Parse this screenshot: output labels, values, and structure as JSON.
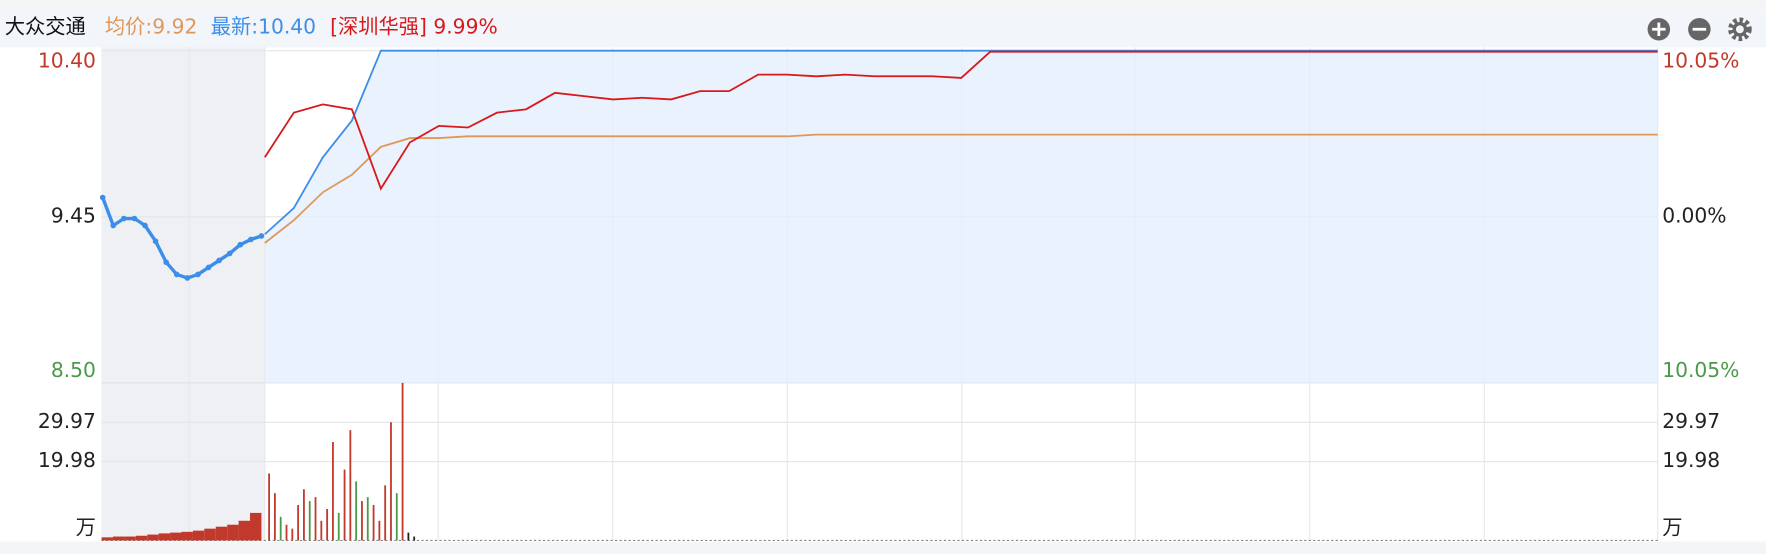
{
  "header": {
    "stock": "大众交通",
    "avg": "均价:9.92",
    "latest": "最新:10.40",
    "compare": "[深圳华强] 9.99%"
  },
  "chart_data": [
    {
      "type": "line",
      "grid": true,
      "ylim": [
        8.5,
        10.4
      ],
      "yticks": [
        {
          "value": 8.5,
          "label": "8.50"
        },
        9.45,
        {
          "value": 10.4,
          "label": "10.40"
        }
      ],
      "ytick_colors": [
        "#4a9a4a",
        "#222222",
        "#c0392b"
      ],
      "y2lim": [
        -10.05,
        10.05
      ],
      "y2ticks": [
        {
          "value": -10.05,
          "label": "10.05%"
        },
        {
          "value": 0,
          "label": "0.00%"
        },
        {
          "value": 10.05,
          "label": "10.05%"
        }
      ],
      "series": [
        {
          "color": "#3d8ee8",
          "fill": "#e3effc",
          "values": [
            9.35,
            9.5,
            9.79,
            10.0,
            10.4,
            10.4,
            10.4,
            10.4,
            10.4,
            10.4,
            10.4,
            10.4,
            10.4,
            10.4,
            10.4,
            10.4,
            10.4,
            10.4,
            10.4,
            10.4,
            10.4,
            10.4,
            10.4,
            10.4,
            10.4,
            10.4,
            10.4,
            10.4,
            10.4,
            10.4,
            10.4,
            10.4,
            10.4,
            10.4,
            10.4,
            10.4,
            10.4,
            10.4,
            10.4,
            10.4,
            10.4,
            10.4,
            10.4,
            10.4,
            10.4,
            10.4,
            10.4,
            10.4,
            10.4
          ]
        },
        {
          "color": "#e0985a",
          "values": [
            9.3,
            9.43,
            9.59,
            9.69,
            9.85,
            9.9,
            9.9,
            9.91,
            9.91,
            9.91,
            9.91,
            9.91,
            9.91,
            9.91,
            9.91,
            9.91,
            9.91,
            9.91,
            9.91,
            9.92,
            9.92,
            9.92,
            9.92,
            9.92,
            9.92,
            9.92,
            9.92,
            9.92,
            9.92,
            9.92,
            9.92,
            9.92,
            9.92,
            9.92,
            9.92,
            9.92,
            9.92,
            9.92,
            9.92,
            9.92,
            9.92,
            9.92,
            9.92,
            9.92,
            9.92,
            9.92,
            9.92,
            9.92,
            9.92
          ]
        },
        {
          "color": "#d7191c",
          "axis": "y2",
          "values": [
            3.6,
            6.3,
            6.8,
            6.5,
            1.7,
            4.5,
            5.5,
            5.4,
            6.3,
            6.5,
            7.5,
            7.3,
            7.1,
            7.2,
            7.1,
            7.6,
            7.6,
            8.6,
            8.6,
            8.5,
            8.6,
            8.5,
            8.5,
            8.5,
            8.4,
            9.99,
            9.99,
            9.99,
            9.99,
            9.99,
            9.99,
            9.99,
            9.99,
            9.99,
            9.99,
            9.99,
            9.99,
            9.99,
            9.99,
            9.99,
            9.99,
            9.99,
            9.99,
            9.99,
            9.99,
            9.99,
            9.99,
            9.99,
            9.99
          ]
        },
        {
          "color": "#3d8ee8",
          "premarket": true,
          "values": [
            9.56,
            9.4,
            9.44,
            9.44,
            9.4,
            9.31,
            9.19,
            9.12,
            9.1,
            9.12,
            9.16,
            9.2,
            9.24,
            9.29,
            9.32,
            9.34
          ]
        }
      ]
    },
    {
      "type": "bar",
      "unit": "万",
      "ylim": [
        0,
        40
      ],
      "yticks": [
        19.98,
        29.97
      ],
      "series": [
        {
          "values": [
            17,
            12,
            6,
            4,
            3,
            9,
            13,
            10,
            11,
            5,
            8,
            25,
            7,
            18,
            28,
            15,
            10,
            11,
            9,
            5,
            14,
            30,
            12,
            40,
            2,
            1
          ],
          "colors": [
            "#c0392b",
            "#c0392b",
            "#4a9a4a",
            "#c0392b",
            "#c0392b",
            "#c0392b",
            "#c0392b",
            "#4a9a4a",
            "#c0392b",
            "#c0392b",
            "#c0392b",
            "#c0392b",
            "#4a9a4a",
            "#c0392b",
            "#c0392b",
            "#4a9a4a",
            "#c0392b",
            "#4a9a4a",
            "#c0392b",
            "#c0392b",
            "#c0392b",
            "#c0392b",
            "#4a9a4a",
            "#c0392b",
            "#222222",
            "#222222"
          ]
        },
        {
          "premarket": true,
          "color": "#c0392b",
          "values": [
            0.8,
            1,
            1,
            1.2,
            1.5,
            1.8,
            2,
            2.2,
            2.5,
            3,
            3.5,
            4,
            5,
            7
          ]
        }
      ]
    }
  ]
}
